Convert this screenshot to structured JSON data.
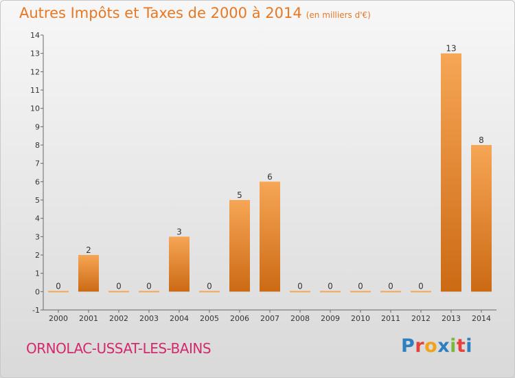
{
  "page": {
    "title": "Autres Impôts et Taxes de 2000 à 2014",
    "unit_note": "(en milliers d'€)",
    "commune": "ORNOLAC-USSAT-LES-BAINS",
    "logo_letters": [
      "P",
      "r",
      "o",
      "x",
      "i",
      "t",
      "i"
    ],
    "logo_colors": [
      "#2d7fc1",
      "#e8403a",
      "#f2a21b",
      "#2d7fc1",
      "#7cb73f",
      "#e8403a",
      "#2d7fc1"
    ]
  },
  "chart_data": {
    "type": "bar",
    "categories": [
      "2000",
      "2001",
      "2002",
      "2003",
      "2004",
      "2005",
      "2006",
      "2007",
      "2008",
      "2009",
      "2010",
      "2011",
      "2012",
      "2013",
      "2014"
    ],
    "values": [
      0,
      2,
      0,
      0,
      3,
      0,
      5,
      6,
      0,
      0,
      0,
      0,
      0,
      13,
      8
    ],
    "value_labels": [
      "0",
      "2",
      "0",
      "0",
      "3",
      "0",
      "5",
      "6",
      "0",
      "0",
      "0",
      "0",
      "0",
      "13",
      "8"
    ],
    "ylim": [
      -1,
      14
    ],
    "yticks": [
      "-1",
      "0",
      "1",
      "2",
      "3",
      "4",
      "5",
      "6",
      "7",
      "8",
      "9",
      "10",
      "11",
      "12",
      "13",
      "14"
    ],
    "grid": false,
    "bar_color_top": "#f6a655",
    "bar_color_bottom": "#cc6a14"
  }
}
